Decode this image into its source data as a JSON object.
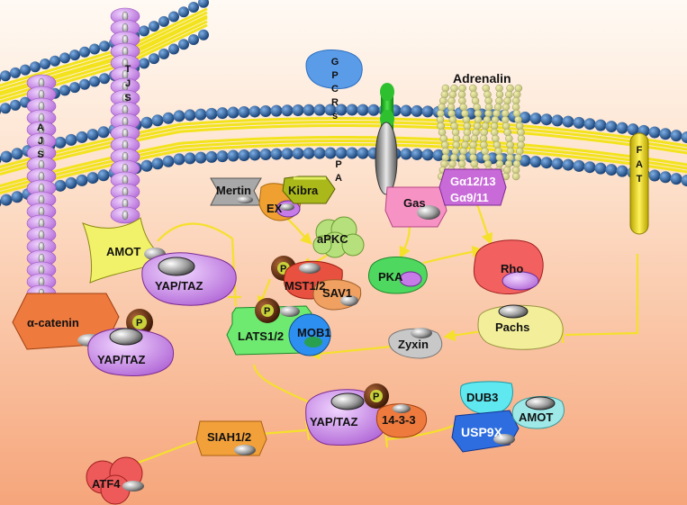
{
  "colors": {
    "background_top": "#fffaf4",
    "background_bottom": "#f6a57a",
    "membrane_head": "#1e4f8c",
    "membrane_tail": "#f3e31d",
    "arrow": "#f5e02c",
    "phospho": "#5a2a0e"
  },
  "labels": {
    "adrenalin": "Adrenalin",
    "gpcrs_vertical": "GPCRs",
    "pa_vertical": "PA",
    "ajs_vertical": "AJS",
    "tjs_vertical": "TJS",
    "fat_vertical": "FAT",
    "mertin": "Mertin",
    "kibra": "Kibra",
    "ex": "EX",
    "apkc": "aPKC",
    "gas": "Gas",
    "galpha12": "Gα12/13",
    "galpha9": "Gα9/11",
    "amot_top": "AMOT",
    "yaptaz_top": "YAP/TAZ",
    "alpha_catenin": "α-catenin",
    "yaptaz_left": "YAP/TAZ",
    "mst": "MST1/2",
    "sav1": "SAV1",
    "pka": "PKA",
    "rho": "Rho",
    "pachs": "Pachs",
    "zyxin": "Zyxin",
    "lats": "LATS1/2",
    "mob1": "MOB1",
    "yaptaz_bottom": "YAP/TAZ",
    "protein_1433": "14-3-3",
    "dub3": "DUB3",
    "usp9x": "USP9X",
    "amot_bottom": "AMOT",
    "siah": "SIAH1/2",
    "atf4": "ATF4",
    "phospho": "P"
  }
}
